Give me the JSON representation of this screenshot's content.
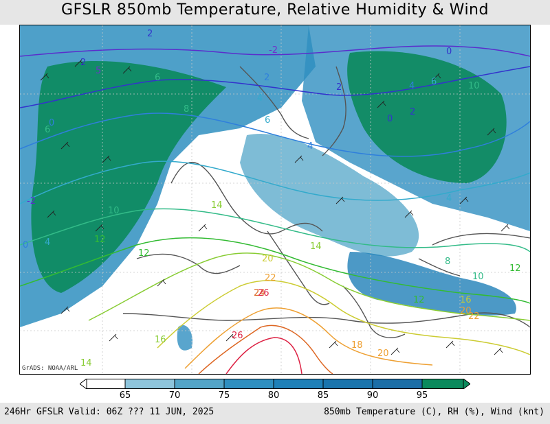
{
  "header": {
    "title": "GFSLR 850mb Temperature, Relative Humidity & Wind"
  },
  "map": {
    "credit": "GrADS: NOAA/ARL",
    "temperature_labels": [
      "2",
      "-2",
      "2",
      "0",
      "5",
      "2",
      "4",
      "6",
      "8",
      "6",
      "4",
      "2",
      "0",
      "10",
      "6",
      "4",
      "2",
      "0",
      "4",
      "6",
      "-2",
      "10",
      "14",
      "12",
      "12",
      "0",
      "4",
      "20",
      "24",
      "26",
      "14",
      "8",
      "12",
      "12",
      "10",
      "16",
      "20",
      "26",
      "16",
      "14",
      "18",
      "20",
      "22",
      "22"
    ],
    "colors": {
      "temp_cold": "#3333cc",
      "temp_cool": "#33bbbb",
      "temp_mild": "#33bb33",
      "temp_warm": "#cccc33",
      "temp_hot": "#dd6622",
      "temp_very_hot": "#dd2244",
      "rh_low": "#7fc0dc",
      "rh_high": "#00a060"
    }
  },
  "colorbar": {
    "labels": [
      "65",
      "70",
      "75",
      "80",
      "85",
      "90",
      "95"
    ],
    "colors": [
      "#ffffff",
      "#8ec5dc",
      "#53a5c8",
      "#2f8fc0",
      "#1f80b8",
      "#1a74ad",
      "#1c6ea7",
      "#0b8a5c"
    ]
  },
  "footer": {
    "left": "246Hr GFSLR Valid: 06Z ??? 11 JUN, 2025",
    "right": "850mb Temperature (C), RH (%), Wind (knt)"
  }
}
